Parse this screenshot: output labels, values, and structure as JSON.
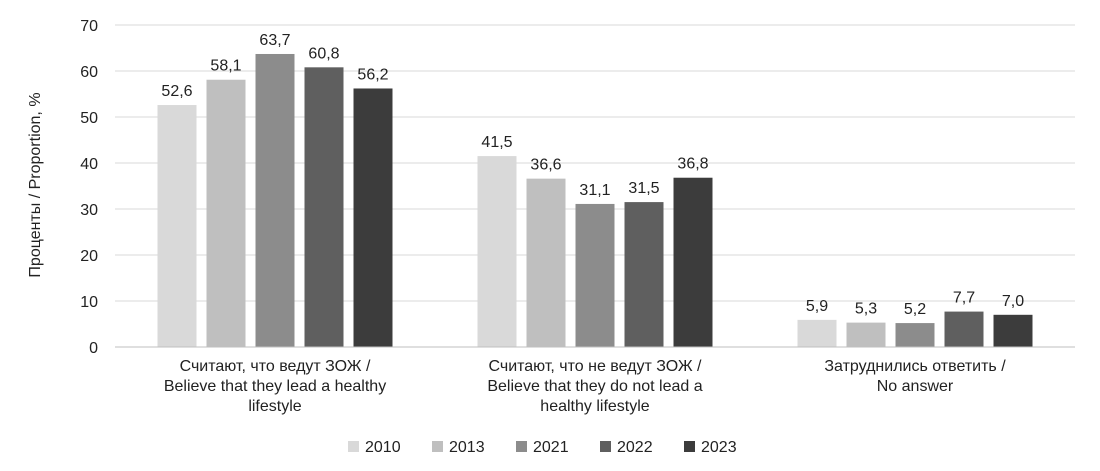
{
  "chart_data": {
    "type": "bar",
    "ylabel": "Проценты / Proportion, %",
    "ylim": [
      0,
      70
    ],
    "yticks": [
      "0",
      "10",
      "20",
      "30",
      "40",
      "50",
      "60",
      "70"
    ],
    "grid": true,
    "legend_position": "bottom",
    "categories": [
      [
        "Считают, что ведут ЗОЖ /",
        "Believe that they lead a healthy",
        "lifestyle"
      ],
      [
        "Считают, что не ведут ЗОЖ /",
        "Believe that they do not lead a",
        "healthy lifestyle"
      ],
      [
        "Затруднились ответить /",
        "No answer"
      ]
    ],
    "series": [
      {
        "name": "2010",
        "color": "#d9d9d9",
        "values": [
          52.6,
          41.5,
          5.9
        ],
        "labels": [
          "52,6",
          "41,5",
          "5,9"
        ]
      },
      {
        "name": "2013",
        "color": "#bfbfbf",
        "values": [
          58.1,
          36.6,
          5.3
        ],
        "labels": [
          "58,1",
          "36,6",
          "5,3"
        ]
      },
      {
        "name": "2021",
        "color": "#8c8c8c",
        "values": [
          63.7,
          31.1,
          5.2
        ],
        "labels": [
          "63,7",
          "31,1",
          "5,2"
        ]
      },
      {
        "name": "2022",
        "color": "#5f5f5f",
        "values": [
          60.8,
          31.5,
          7.7
        ],
        "labels": [
          "60,8",
          "31,5",
          "7,7"
        ]
      },
      {
        "name": "2023",
        "color": "#3c3c3c",
        "values": [
          56.2,
          36.8,
          7.0
        ],
        "labels": [
          "56,2",
          "36,8",
          "7,0"
        ]
      }
    ]
  }
}
